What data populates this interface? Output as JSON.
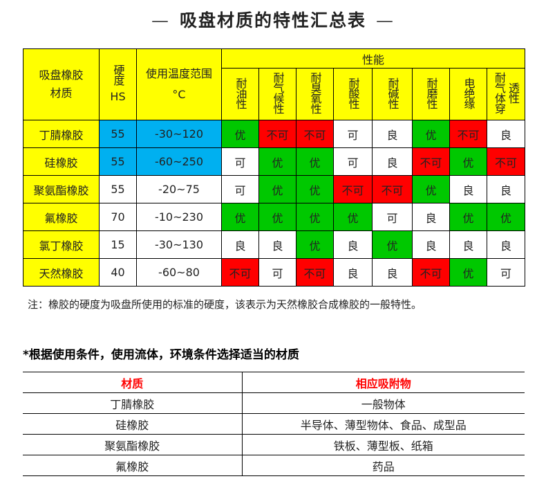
{
  "title": "吸盘材质的特性汇总表",
  "title_dash": "—",
  "colors": {
    "header": "#ffff00",
    "blue": "#00b0f0",
    "good": "#00c800",
    "bad": "#ff0000"
  },
  "main_table": {
    "headers": {
      "material": "吸盘橡胶\n材质",
      "hardness_a": "硬度",
      "hardness_b": "HS",
      "temp_a": "使用温度范围",
      "temp_b": "°C",
      "performance": "性能",
      "properties": [
        "耐油性",
        "耐气候性",
        "耐臭氧性",
        "耐酸性",
        "耐碱性",
        "耐磨性",
        "电绝缘",
        "耐气体穿透性"
      ]
    },
    "rows": [
      {
        "material": "丁腈橡胶",
        "hs": "55",
        "temp": "-30~120",
        "hs_color": "b",
        "values": [
          "优",
          "不可",
          "不可",
          "可",
          "良",
          "优",
          "不可",
          "良"
        ],
        "colors": [
          "g",
          "r",
          "r",
          "w",
          "w",
          "g",
          "r",
          "w"
        ]
      },
      {
        "material": "硅橡胶",
        "hs": "55",
        "temp": "-60~250",
        "hs_color": "b",
        "values": [
          "可",
          "优",
          "优",
          "可",
          "良",
          "不可",
          "优",
          "不可"
        ],
        "colors": [
          "w",
          "g",
          "g",
          "w",
          "w",
          "r",
          "g",
          "r"
        ]
      },
      {
        "material": "聚氨酯橡胶",
        "hs": "55",
        "temp": "-20~75",
        "hs_color": "w",
        "values": [
          "可",
          "优",
          "优",
          "不可",
          "不可",
          "优",
          "良",
          "良"
        ],
        "colors": [
          "w",
          "g",
          "g",
          "r",
          "r",
          "g",
          "w",
          "w"
        ]
      },
      {
        "material": "氟橡胶",
        "hs": "70",
        "temp": "-10~230",
        "hs_color": "w",
        "values": [
          "优",
          "优",
          "优",
          "优",
          "可",
          "良",
          "优",
          "优"
        ],
        "colors": [
          "g",
          "g",
          "g",
          "g",
          "w",
          "w",
          "g",
          "g"
        ]
      },
      {
        "material": "氯丁橡胶",
        "hs": "15",
        "temp": "-30~130",
        "hs_color": "w",
        "values": [
          "良",
          "良",
          "优",
          "良",
          "优",
          "良",
          "良",
          "良"
        ],
        "colors": [
          "w",
          "w",
          "g",
          "w",
          "g",
          "w",
          "w",
          "w"
        ]
      },
      {
        "material": "天然橡胶",
        "hs": "40",
        "temp": "-60~80",
        "hs_color": "w",
        "values": [
          "不可",
          "可",
          "不可",
          "良",
          "良",
          "不可",
          "优",
          "可"
        ],
        "colors": [
          "r",
          "w",
          "r",
          "w",
          "w",
          "r",
          "g",
          "w"
        ]
      }
    ]
  },
  "note": "注：橡胶的硬度为吸盘所使用的标准的硬度，该表示为天然橡胶合成橡胶的一般特性。",
  "section_title": "*根据使用条件，使用流体，环境条件选择适当的材质",
  "sub_table": {
    "headers": [
      "材质",
      "相应吸附物"
    ],
    "rows": [
      [
        "丁腈橡胶",
        "一般物体"
      ],
      [
        "硅橡胶",
        "半导体、薄型物体、食品、成型品"
      ],
      [
        "聚氨酯橡胶",
        "铁板、薄型板、纸箱"
      ],
      [
        "氟橡胶",
        "药品"
      ]
    ]
  }
}
